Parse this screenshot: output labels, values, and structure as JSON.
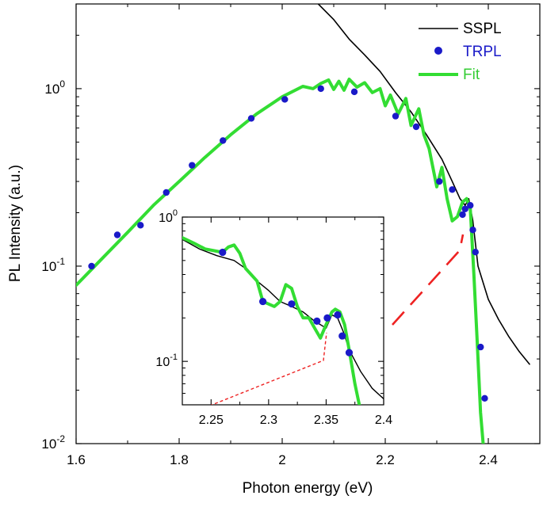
{
  "chart_data": [
    {
      "type": "line",
      "ylabel": "PL Intensity (a.u.)",
      "xlabel": "Photon energy (eV)",
      "yscale": "log",
      "xlim": [
        1.6,
        2.5
      ],
      "ylim": [
        0.01,
        3.0
      ],
      "x_ticks": [
        1.6,
        1.8,
        2.0,
        2.2,
        2.4
      ],
      "x_tick_labels": [
        "1.6",
        "1.8",
        "2",
        "2.2",
        "2.4"
      ],
      "y_tick_labels": [
        {
          "value": 1,
          "base": "10",
          "exp": "0"
        },
        {
          "value": 0.1,
          "base": "10",
          "exp": "-1"
        },
        {
          "value": 0.01,
          "base": "10",
          "exp": "-2"
        }
      ],
      "legend": [
        {
          "label": "SSPL",
          "color": "#000000",
          "style": "line"
        },
        {
          "label": "TRPL",
          "color": "#1a1ac8",
          "style": "marker",
          "text_color": "#1a1ac8"
        },
        {
          "label": "Fit",
          "color": "#33dd33",
          "style": "line",
          "text_color": "#33cc33"
        }
      ],
      "series": [
        {
          "name": "SSPL",
          "color": "#000000",
          "x": [
            2.07,
            2.1,
            2.13,
            2.16,
            2.19,
            2.22,
            2.25,
            2.28,
            2.31,
            2.33,
            2.345,
            2.355,
            2.362,
            2.37,
            2.38,
            2.4,
            2.42,
            2.44,
            2.46,
            2.48
          ],
          "y": [
            3.0,
            2.45,
            1.9,
            1.55,
            1.25,
            0.95,
            0.74,
            0.55,
            0.4,
            0.3,
            0.24,
            0.22,
            0.24,
            0.18,
            0.1,
            0.065,
            0.05,
            0.04,
            0.033,
            0.028
          ]
        },
        {
          "name": "TRPL",
          "color": "#1a1ac8",
          "x": [
            1.63,
            1.68,
            1.725,
            1.775,
            1.825,
            1.885,
            1.94,
            2.005,
            2.075,
            2.14,
            2.22,
            2.26,
            2.305,
            2.33,
            2.35,
            2.355,
            2.365,
            2.37,
            2.375,
            2.385,
            2.393
          ],
          "y": [
            0.1,
            0.15,
            0.17,
            0.26,
            0.37,
            0.51,
            0.68,
            0.87,
            1.0,
            0.96,
            0.7,
            0.61,
            0.3,
            0.27,
            0.195,
            0.21,
            0.22,
            0.16,
            0.12,
            0.035,
            0.018
          ]
        },
        {
          "name": "Fit",
          "color": "#33dd33",
          "x": [
            1.6,
            1.65,
            1.7,
            1.75,
            1.8,
            1.85,
            1.9,
            1.95,
            2.0,
            2.04,
            2.06,
            2.075,
            2.09,
            2.1,
            2.11,
            2.12,
            2.13,
            2.145,
            2.16,
            2.175,
            2.19,
            2.2,
            2.21,
            2.225,
            2.24,
            2.25,
            2.265,
            2.275,
            2.285,
            2.3,
            2.31,
            2.32,
            2.33,
            2.34,
            2.35,
            2.358,
            2.365,
            2.372,
            2.378,
            2.385,
            2.39
          ],
          "y": [
            0.078,
            0.11,
            0.155,
            0.22,
            0.3,
            0.41,
            0.55,
            0.72,
            0.9,
            1.03,
            1.0,
            1.07,
            1.12,
            0.99,
            1.1,
            0.98,
            1.13,
            1.02,
            1.08,
            0.95,
            1.0,
            0.8,
            0.92,
            0.72,
            0.88,
            0.62,
            0.77,
            0.55,
            0.46,
            0.28,
            0.36,
            0.24,
            0.18,
            0.19,
            0.23,
            0.24,
            0.21,
            0.09,
            0.04,
            0.015,
            0.01
          ]
        }
      ],
      "guide_line": {
        "color": "#ee2222",
        "style": "dashed"
      }
    },
    {
      "type": "line",
      "role": "inset",
      "yscale": "log",
      "xlim": [
        2.225,
        2.4
      ],
      "ylim": [
        0.05,
        1.0
      ],
      "x_ticks": [
        2.25,
        2.3,
        2.35,
        2.4
      ],
      "x_tick_labels": [
        "2.25",
        "2.3",
        "2.35",
        "2.4"
      ],
      "y_tick_labels": [
        {
          "value": 1,
          "base": "10",
          "exp": "0"
        },
        {
          "value": 0.1,
          "base": "10",
          "exp": "-1"
        }
      ],
      "series": [
        {
          "name": "SSPL",
          "color": "#000000",
          "x": [
            2.225,
            2.24,
            2.255,
            2.27,
            2.28,
            2.29,
            2.3,
            2.31,
            2.32,
            2.33,
            2.34,
            2.35,
            2.355,
            2.36,
            2.365,
            2.37,
            2.38,
            2.39,
            2.4
          ],
          "y": [
            0.7,
            0.6,
            0.54,
            0.5,
            0.44,
            0.36,
            0.31,
            0.26,
            0.24,
            0.22,
            0.19,
            0.17,
            0.21,
            0.2,
            0.16,
            0.12,
            0.085,
            0.065,
            0.055
          ]
        },
        {
          "name": "TRPL",
          "color": "#1a1ac8",
          "x": [
            2.26,
            2.295,
            2.32,
            2.342,
            2.351,
            2.36,
            2.364,
            2.37
          ],
          "y": [
            0.57,
            0.26,
            0.25,
            0.19,
            0.2,
            0.21,
            0.15,
            0.115
          ]
        },
        {
          "name": "Fit",
          "color": "#33dd33",
          "x": [
            2.225,
            2.235,
            2.245,
            2.255,
            2.26,
            2.265,
            2.27,
            2.275,
            2.28,
            2.29,
            2.295,
            2.305,
            2.31,
            2.315,
            2.32,
            2.325,
            2.33,
            2.335,
            2.34,
            2.345,
            2.35,
            2.355,
            2.358,
            2.362,
            2.366,
            2.37,
            2.375,
            2.38
          ],
          "y": [
            0.72,
            0.66,
            0.6,
            0.58,
            0.57,
            0.62,
            0.64,
            0.56,
            0.44,
            0.36,
            0.26,
            0.24,
            0.26,
            0.34,
            0.32,
            0.24,
            0.2,
            0.2,
            0.17,
            0.145,
            0.18,
            0.22,
            0.23,
            0.22,
            0.18,
            0.12,
            0.07,
            0.045
          ]
        }
      ],
      "guide_line": {
        "color": "#ee2222",
        "style": "dashed"
      }
    }
  ]
}
